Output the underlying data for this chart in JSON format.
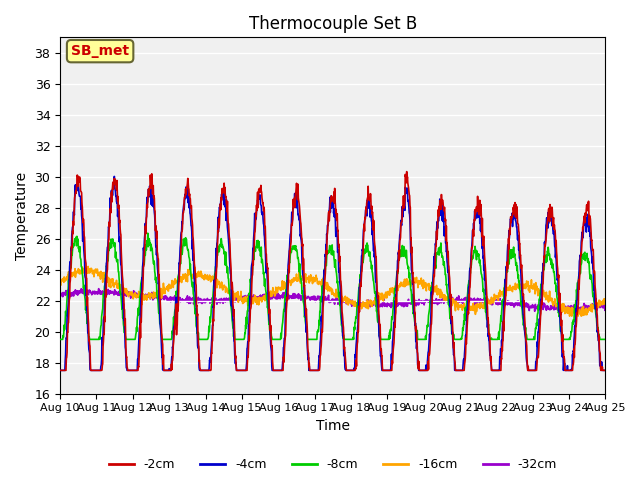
{
  "title": "Thermocouple Set B",
  "xlabel": "Time",
  "ylabel": "Temperature",
  "ylim": [
    16,
    39
  ],
  "yticks": [
    16,
    18,
    20,
    22,
    24,
    26,
    28,
    30,
    32,
    34,
    36,
    38
  ],
  "xlim_days": [
    0,
    15
  ],
  "xtick_labels": [
    "Aug 10",
    "Aug 11",
    "Aug 12",
    "Aug 13",
    "Aug 14",
    "Aug 15",
    "Aug 16",
    "Aug 17",
    "Aug 18",
    "Aug 19",
    "Aug 20",
    "Aug 21",
    "Aug 22",
    "Aug 23",
    "Aug 24",
    "Aug 25"
  ],
  "colors": {
    "-2cm": "#cc0000",
    "-4cm": "#0000cc",
    "-8cm": "#00cc00",
    "-16cm": "#ffa500",
    "-32cm": "#9900cc"
  },
  "annotation_text": "SB_met",
  "annotation_color": "#cc0000",
  "annotation_bg": "#ffff99",
  "bg_color": "#e8e8e8",
  "plot_bg": "#f0f0f0",
  "legend_entries": [
    "-2cm",
    "-4cm",
    "-8cm",
    "-16cm",
    "-32cm"
  ]
}
